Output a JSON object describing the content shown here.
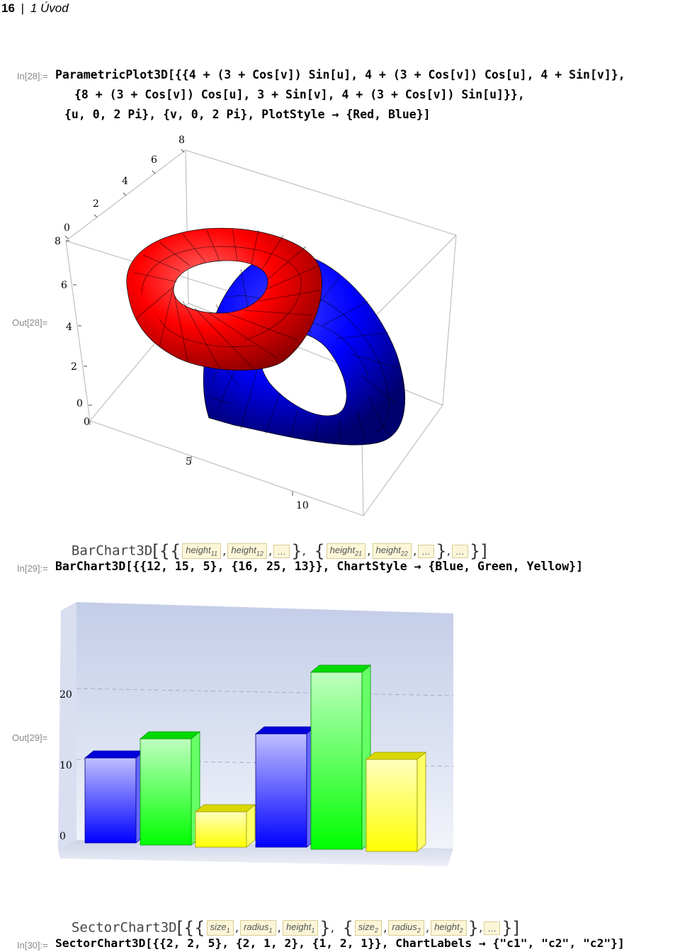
{
  "header": {
    "page_number": "16",
    "separator": "|",
    "chapter": "1 Úvod"
  },
  "cells": {
    "in28_label": "In[28]:=",
    "in28_line1": "ParametricPlot3D[{{4 + (3 + Cos[v]) Sin[u], 4 + (3 + Cos[v]) Cos[u], 4 + Sin[v]},",
    "in28_line2": "{8 + (3 + Cos[v]) Cos[u], 3 + Sin[v], 4 + (3 + Cos[v]) Sin[u]}},",
    "in28_line3": "{u, 0, 2 Pi}, {v, 0, 2 Pi}, PlotStyle → {Red, Blue}]",
    "out28_label": "Out[28]=",
    "in29_label": "In[29]:=",
    "in29_code": "BarChart3D[{{12, 15, 5}, {16, 25, 13}}, ChartStyle → {Blue, Green, Yellow}]",
    "out29_label": "Out[29]=",
    "in30_label": "In[30]:=",
    "in30_code": "SectorChart3D[{{2, 2, 5}, {2, 1, 2}, {1, 2, 1}}, ChartLabels → {\"c1\", \"c2\", \"c2\"}]"
  },
  "templates": {
    "barchart": {
      "name": "BarChart3D",
      "placeholders": [
        "height",
        "11",
        "height",
        "12",
        "…",
        "height",
        "21",
        "height",
        "22",
        "…",
        "…"
      ]
    },
    "sectorchart": {
      "name": "SectorChart3D",
      "placeholders": [
        "size",
        "1",
        "radius",
        "1",
        "height",
        "1",
        "size",
        "2",
        "radius",
        "2",
        "height",
        "2",
        "…"
      ]
    }
  },
  "torus_plot": {
    "axis_top": [
      "0",
      "2",
      "4",
      "6",
      "8"
    ],
    "axis_left": [
      "8",
      "6",
      "4",
      "2",
      "0"
    ],
    "axis_bottom": [
      "0",
      "5",
      "10"
    ],
    "colors": {
      "first": "#ff0000",
      "second": "#0000ff"
    }
  },
  "chart_data": {
    "type": "bar",
    "categories": [
      "",
      ""
    ],
    "series": [
      {
        "values": [
          12,
          16
        ],
        "color": "#0000ff"
      },
      {
        "values": [
          15,
          25
        ],
        "color": "#00ff00"
      },
      {
        "values": [
          5,
          13
        ],
        "color": "#ffff00"
      }
    ],
    "y_ticks": [
      "0",
      "10",
      "20"
    ],
    "ylim": [
      0,
      27
    ],
    "grid": true,
    "title": "",
    "xlabel": "",
    "ylabel": ""
  }
}
